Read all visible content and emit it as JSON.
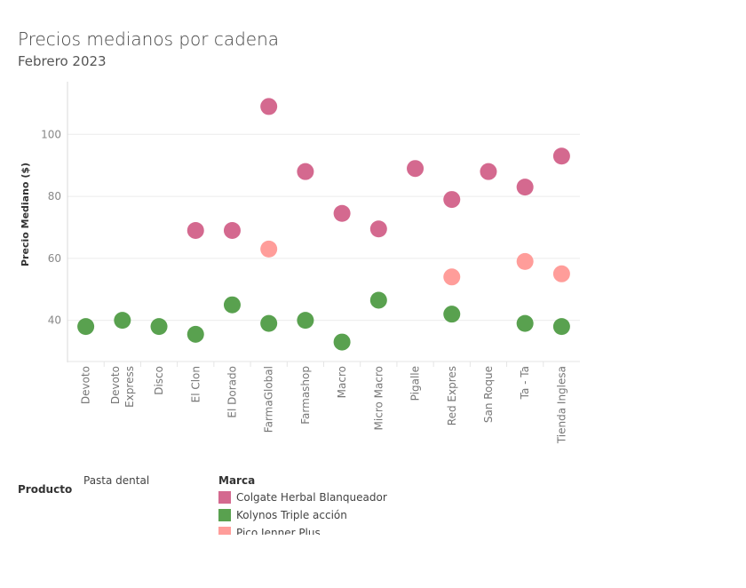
{
  "header": {
    "title": "Precios medianos por cadena",
    "subtitle": "Febrero 2023"
  },
  "filter": {
    "label": "Producto",
    "value": "Pasta dental"
  },
  "legend": {
    "title": "Marca",
    "items": [
      {
        "label": "Colgate Herbal Blanqueador",
        "color": "#d4698f"
      },
      {
        "label": "Kolynos Triple acción",
        "color": "#59a14f"
      },
      {
        "label": "Pico Jenner Plus",
        "color": "#ff9d9a"
      }
    ]
  },
  "chart_data": {
    "type": "scatter",
    "ylabel": "Precio Mediano ($)",
    "ylim": [
      27,
      117
    ],
    "yticks": [
      40,
      60,
      80,
      100
    ],
    "grid": true,
    "legend_position": "bottom",
    "categories": [
      [
        "Devoto"
      ],
      [
        "Devoto",
        "Express"
      ],
      [
        "Disco"
      ],
      [
        "El Clon"
      ],
      [
        "El Dorado"
      ],
      [
        "FarmaGlobal"
      ],
      [
        "Farmashop"
      ],
      [
        "Macro"
      ],
      [
        "Micro Macro"
      ],
      [
        "Pigalle"
      ],
      [
        "Red Expres"
      ],
      [
        "San Roque"
      ],
      [
        "Ta - Ta"
      ],
      [
        "Tienda Inglesa"
      ]
    ],
    "series": [
      {
        "name": "Colgate Herbal Blanqueador",
        "color": "#d4698f",
        "values": [
          null,
          null,
          null,
          69,
          69,
          109,
          88,
          74.5,
          69.5,
          89,
          79,
          88,
          83,
          93
        ]
      },
      {
        "name": "Kolynos Triple acción",
        "color": "#59a14f",
        "values": [
          38,
          40,
          38,
          35.5,
          45,
          39,
          40,
          33,
          46.5,
          null,
          42,
          null,
          39,
          38
        ]
      },
      {
        "name": "Pico Jenner Plus",
        "color": "#ff9d9a",
        "values": [
          null,
          null,
          null,
          null,
          null,
          63,
          null,
          null,
          null,
          null,
          54,
          null,
          59,
          55
        ]
      }
    ]
  }
}
